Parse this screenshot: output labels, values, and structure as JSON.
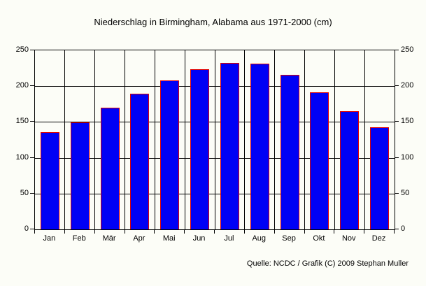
{
  "chart_data": {
    "type": "bar",
    "title": "Niederschlag in Birmingham, Alabama aus 1971-2000 (cm)",
    "categories": [
      "Jan",
      "Feb",
      "Mär",
      "Apr",
      "Mai",
      "Jun",
      "Jul",
      "Aug",
      "Sep",
      "Okt",
      "Nov",
      "Dez"
    ],
    "values": [
      136,
      149,
      170,
      189,
      208,
      224,
      232,
      231,
      216,
      191,
      165,
      143
    ],
    "xlabel": "",
    "ylabel": "",
    "ylim": [
      0,
      250
    ],
    "yticks": [
      0,
      50,
      100,
      150,
      200,
      250
    ],
    "grid": true,
    "legend_position": "none",
    "source": "Quelle: NCDC / Grafik (C) 2009 Stephan Muller",
    "colors": {
      "background": "#FCFDF7",
      "bar_fill": "#0000F5",
      "bar_border": "#E00000",
      "grid": "#000000",
      "text": "#000000"
    }
  }
}
